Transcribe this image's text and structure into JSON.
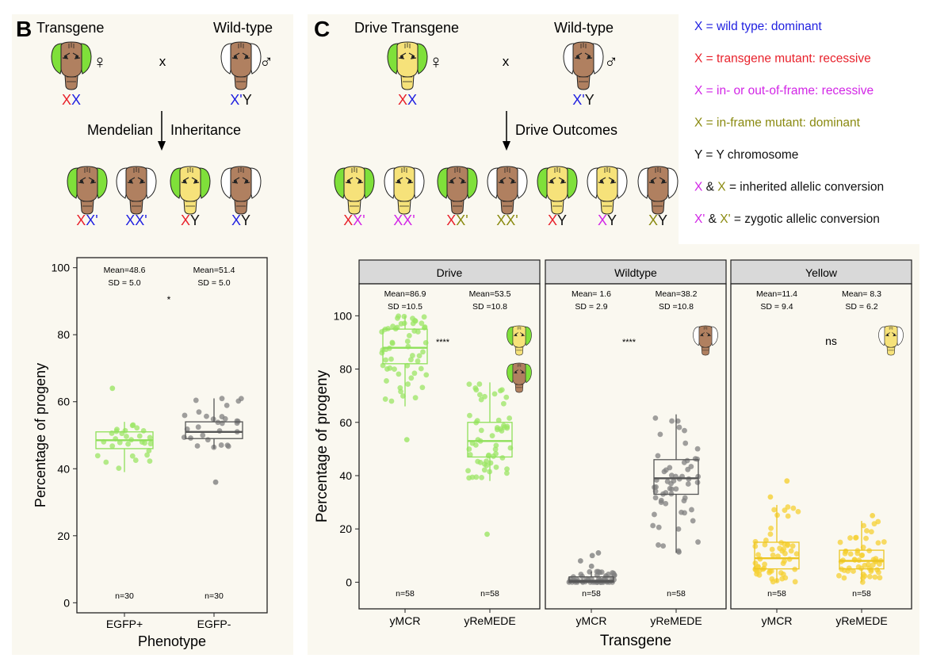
{
  "panels": {
    "b": {
      "letter": "B",
      "parent1_label": "Transgene",
      "parent2_label": "Wild-type",
      "female_symbol": "♀",
      "male_symbol": "♂",
      "cross_symbol": "x",
      "parent1_geno": [
        {
          "t": "X",
          "c": "red"
        },
        {
          "t": "X",
          "c": "blue"
        }
      ],
      "parent2_geno": [
        {
          "t": "X'",
          "c": "blue"
        },
        {
          "t": "Y",
          "c": "black"
        }
      ],
      "arrow_left": "Mendelian",
      "arrow_right": "Inheritance",
      "offspring": [
        {
          "head": "brown",
          "eyes": "green",
          "geno": [
            {
              "t": "X",
              "c": "red"
            },
            {
              "t": "X'",
              "c": "blue"
            }
          ]
        },
        {
          "head": "brown",
          "eyes": "white",
          "geno": [
            {
              "t": "X",
              "c": "blue"
            },
            {
              "t": "X'",
              "c": "blue"
            }
          ]
        },
        {
          "head": "yellow",
          "eyes": "green",
          "geno": [
            {
              "t": "X",
              "c": "red"
            },
            {
              "t": "Y",
              "c": "black"
            }
          ]
        },
        {
          "head": "brown",
          "eyes": "white",
          "geno": [
            {
              "t": "X",
              "c": "blue"
            },
            {
              "t": "Y",
              "c": "black"
            }
          ]
        }
      ]
    },
    "c": {
      "letter": "C",
      "parent1_label": "Drive Transgene",
      "parent2_label": "Wild-type",
      "female_symbol": "♀",
      "male_symbol": "♂",
      "cross_symbol": "x",
      "parent1_geno": [
        {
          "t": "X",
          "c": "red"
        },
        {
          "t": "X",
          "c": "blue"
        }
      ],
      "parent2_geno": [
        {
          "t": "X'",
          "c": "blue"
        },
        {
          "t": "Y",
          "c": "black"
        }
      ],
      "arrow_label": "Drive Outcomes",
      "offspring": [
        {
          "head": "yellow",
          "eyes": "green",
          "geno": [
            {
              "t": "X",
              "c": "red"
            },
            {
              "t": "X'",
              "c": "magenta"
            }
          ]
        },
        {
          "head": "yellow",
          "eyes": "white",
          "geno": [
            {
              "t": "X",
              "c": "magenta"
            },
            {
              "t": "X'",
              "c": "magenta"
            }
          ]
        },
        {
          "head": "brown",
          "eyes": "green",
          "geno": [
            {
              "t": "X",
              "c": "red"
            },
            {
              "t": "X'",
              "c": "olive"
            }
          ]
        },
        {
          "head": "brown",
          "eyes": "white",
          "geno": [
            {
              "t": "X",
              "c": "olive"
            },
            {
              "t": "X'",
              "c": "olive"
            }
          ]
        },
        {
          "head": "yellow",
          "eyes": "green",
          "geno": [
            {
              "t": "X",
              "c": "red"
            },
            {
              "t": "Y",
              "c": "black"
            }
          ]
        },
        {
          "head": "yellow",
          "eyes": "white",
          "geno": [
            {
              "t": "X",
              "c": "magenta"
            },
            {
              "t": "Y",
              "c": "black"
            }
          ]
        },
        {
          "head": "brown",
          "eyes": "white",
          "geno": [
            {
              "t": "X",
              "c": "olive"
            },
            {
              "t": "Y",
              "c": "black"
            }
          ]
        }
      ]
    }
  },
  "legend": [
    [
      {
        "t": "X = wild type: dominant",
        "c": "blue"
      }
    ],
    [
      {
        "t": "X = transgene mutant: recessive",
        "c": "red"
      }
    ],
    [
      {
        "t": "X = in- or out-of-frame: recessive",
        "c": "magenta"
      }
    ],
    [
      {
        "t": "X = in-frame mutant: dominant",
        "c": "olive"
      }
    ],
    [
      {
        "t": "Y = Y chromosome",
        "c": "black"
      }
    ],
    [
      {
        "t": "X",
        "c": "magenta"
      },
      {
        "t": " & ",
        "c": "black"
      },
      {
        "t": "X",
        "c": "olive"
      },
      {
        "t": " = inherited allelic conversion",
        "c": "black"
      }
    ],
    [
      {
        "t": "X'",
        "c": "magenta"
      },
      {
        "t": " & ",
        "c": "black"
      },
      {
        "t": "X'",
        "c": "olive"
      },
      {
        "t": " = zygotic allelic conversion",
        "c": "black"
      }
    ]
  ],
  "colors": {
    "red": "#e8212b",
    "blue": "#1f1fe0",
    "magenta": "#d226e6",
    "olive": "#8a8a10",
    "black": "#111111",
    "green_points": "#9be564",
    "green_box": "#8fe05a",
    "gray_points": "#808080",
    "gray_box": "#555555",
    "yellow_points": "#f5d033",
    "yellow_box": "#ecc522",
    "head_brown": "#b08060",
    "head_yellow": "#f6e27a",
    "eye_green": "#7fe03a",
    "panel_bg": "#faf8f0",
    "strip_bg": "#d9d9d9"
  },
  "chart_data": [
    {
      "type": "box",
      "panel": "B",
      "ylabel": "Percentage of progeny",
      "xlabel": "Phenotype",
      "ylim": [
        -3,
        103
      ],
      "yticks": [
        0,
        20,
        40,
        60,
        80,
        100
      ],
      "categories": [
        "EGFP+",
        "EGFP-"
      ],
      "series": [
        {
          "category": "EGFP+",
          "color": "green",
          "median": 48.5,
          "q1": 46,
          "q3": 51,
          "whisker_low": 39,
          "whisker_high": 54,
          "outliers": [
            64
          ],
          "mean_label": "Mean=48.6",
          "sd_label": "SD   = 5.0",
          "n_label": "n=30"
        },
        {
          "category": "EGFP-",
          "color": "gray",
          "median": 51,
          "q1": 49,
          "q3": 54,
          "whisker_low": 46,
          "whisker_high": 61,
          "outliers": [
            36
          ],
          "mean_label": "Mean=51.4",
          "sd_label": "SD   = 5.0",
          "n_label": "n=30"
        }
      ],
      "significance": "*"
    },
    {
      "type": "box",
      "panel": "C",
      "ylabel": "Percentage of progeny",
      "xlabel": "Transgene",
      "ylim": [
        -10,
        112
      ],
      "yticks": [
        0,
        20,
        40,
        60,
        80,
        100
      ],
      "facets": [
        {
          "strip": "Drive",
          "categories": [
            "yMCR",
            "yReMEDE"
          ],
          "significance": "****",
          "icons": [
            {
              "head": "yellow",
              "eyes": "green"
            },
            {
              "head": "brown",
              "eyes": "green"
            }
          ],
          "series": [
            {
              "category": "yMCR",
              "color": "green",
              "median": 88,
              "q1": 82,
              "q3": 95,
              "whisker_low": 66,
              "whisker_high": 100,
              "outliers": [
                53.5
              ],
              "mean_label": "Mean=86.9",
              "sd_label": "SD   =10.5",
              "n_label": "n=58"
            },
            {
              "category": "yReMEDE",
              "color": "green",
              "median": 53,
              "q1": 47,
              "q3": 60,
              "whisker_low": 38,
              "whisker_high": 75,
              "outliers": [
                18
              ],
              "mean_label": "Mean=53.5",
              "sd_label": "SD   =10.8",
              "n_label": "n=58"
            }
          ]
        },
        {
          "strip": "Wildtype",
          "categories": [
            "yMCR",
            "yReMEDE"
          ],
          "significance": "****",
          "icons": [
            {
              "head": "brown",
              "eyes": "white"
            }
          ],
          "series": [
            {
              "category": "yMCR",
              "color": "gray",
              "median": 0.5,
              "q1": 0,
              "q3": 2,
              "whisker_low": 0,
              "whisker_high": 4,
              "outliers": [
                6,
                8,
                10,
                11
              ],
              "mean_label": "Mean= 1.6",
              "sd_label": "SD   = 2.9",
              "n_label": "n=58"
            },
            {
              "category": "yReMEDE",
              "color": "gray",
              "median": 39,
              "q1": 33,
              "q3": 46,
              "whisker_low": 11,
              "whisker_high": 63,
              "outliers": [],
              "mean_label": "Mean=38.2",
              "sd_label": "SD   =10.8",
              "n_label": "n=58"
            }
          ]
        },
        {
          "strip": "Yellow",
          "categories": [
            "yMCR",
            "yReMEDE"
          ],
          "significance": "ns",
          "icons": [
            {
              "head": "yellow",
              "eyes": "white"
            }
          ],
          "series": [
            {
              "category": "yMCR",
              "color": "yellow",
              "median": 9,
              "q1": 5,
              "q3": 15,
              "whisker_low": 0,
              "whisker_high": 29,
              "outliers": [
                32,
                38
              ],
              "mean_label": "Mean=11.4",
              "sd_label": "SD   = 9.4",
              "n_label": "n=58"
            },
            {
              "category": "yReMEDE",
              "color": "yellow",
              "median": 8,
              "q1": 5,
              "q3": 12,
              "whisker_low": 0,
              "whisker_high": 23,
              "outliers": [
                25
              ],
              "mean_label": "Mean= 8.3",
              "sd_label": "SD   = 6.2",
              "n_label": "n=58"
            }
          ]
        }
      ]
    }
  ]
}
